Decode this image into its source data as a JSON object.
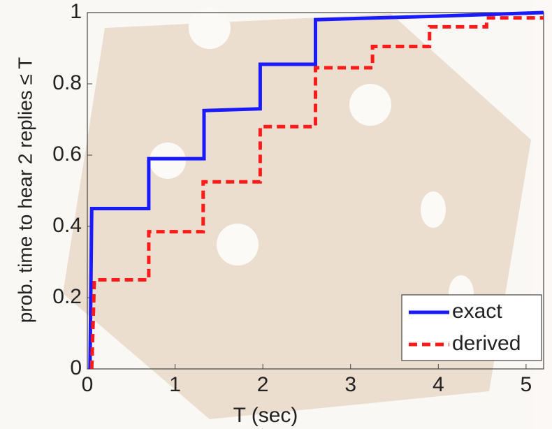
{
  "chart_data": {
    "type": "line",
    "x_label": "T (sec)",
    "y_label": "prob. time to hear 2 replies ≤ T",
    "xlim": [
      0,
      5.2
    ],
    "ylim": [
      0,
      1
    ],
    "xticks": [
      0,
      1,
      2,
      3,
      4,
      5
    ],
    "yticks": [
      0,
      0.2,
      0.4,
      0.6,
      0.8,
      1
    ],
    "legend": "lower right",
    "series": [
      {
        "name": "exact",
        "color": "#1a1aff",
        "line_style": "solid",
        "x": [
          0.03,
          0.05,
          0.7,
          0.7,
          1.33,
          1.33,
          1.97,
          1.97,
          2.6,
          2.6,
          4.0,
          5.2
        ],
        "values": [
          0,
          0.45,
          0.45,
          0.59,
          0.59,
          0.725,
          0.73,
          0.855,
          0.855,
          0.98,
          0.99,
          1.0
        ]
      },
      {
        "name": "derived",
        "color": "#ff1a1a",
        "line_style": "dashed",
        "x": [
          0.05,
          0.08,
          0.7,
          0.7,
          1.32,
          1.32,
          1.97,
          1.97,
          2.6,
          2.6,
          3.25,
          3.25,
          3.9,
          3.9,
          4.55,
          4.55,
          5.2
        ],
        "values": [
          0,
          0.25,
          0.25,
          0.385,
          0.385,
          0.525,
          0.525,
          0.68,
          0.68,
          0.845,
          0.845,
          0.905,
          0.905,
          0.96,
          0.96,
          0.985,
          0.985
        ]
      }
    ]
  }
}
